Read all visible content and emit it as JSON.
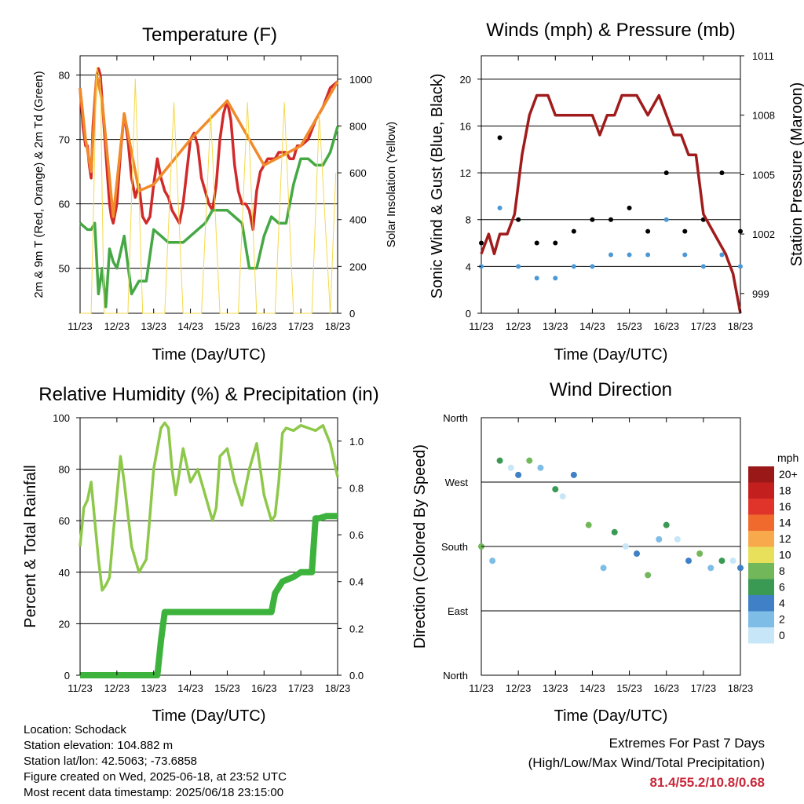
{
  "chart_data": [
    {
      "type": "line",
      "title": "Temperature (F)",
      "xlabel": "Time (Day/UTC)",
      "ylabel": "2m & 9m T (Red, Orange) & 2m Td (Green)",
      "ylabel_right": "Solar Insolation (Yellow)",
      "x_ticks": [
        "11/23",
        "12/23",
        "13/23",
        "14/23",
        "15/23",
        "16/23",
        "17/23",
        "18/23"
      ],
      "ylim": [
        43,
        83
      ],
      "y_ticks": [
        50,
        60,
        70,
        80
      ],
      "ylim_right": [
        0,
        1100
      ],
      "y_ticks_right": [
        0,
        200,
        400,
        600,
        800,
        1000
      ],
      "grid": true,
      "series": [
        {
          "name": "2m T",
          "color": "#d12a2a",
          "axis": "left",
          "x": [
            0,
            0.08,
            0.15,
            0.2,
            0.25,
            0.3,
            0.35,
            0.4,
            0.45,
            0.5,
            0.55,
            0.6,
            0.65,
            0.7,
            0.75,
            0.8,
            0.85,
            0.9,
            1.0,
            1.1,
            1.2,
            1.3,
            1.4,
            1.5,
            1.6,
            1.7,
            1.8,
            1.9,
            2.0,
            2.1,
            2.2,
            2.3,
            2.4,
            2.5,
            2.6,
            2.7,
            2.8,
            2.9,
            3.0,
            3.1,
            3.2,
            3.3,
            3.4,
            3.5,
            3.6,
            3.7,
            3.8,
            3.9,
            4.0,
            4.1,
            4.2,
            4.3,
            4.4,
            4.5,
            4.6,
            4.7,
            4.8,
            4.9,
            5.0,
            5.1,
            5.2,
            5.3,
            5.4,
            5.5,
            5.6,
            5.7,
            5.8,
            5.9,
            6.0,
            6.2,
            6.4,
            6.6,
            6.8,
            7.0
          ],
          "y": [
            78,
            72,
            69,
            69,
            66,
            64,
            72,
            76,
            80,
            81,
            80,
            76,
            72,
            68,
            64,
            60,
            58,
            57,
            60,
            68,
            74,
            70,
            64,
            61,
            63,
            58,
            57,
            58,
            63,
            67,
            64,
            62,
            61,
            59,
            58,
            57,
            60,
            65,
            70,
            71,
            69,
            64,
            62,
            60,
            59,
            63,
            70,
            74,
            76,
            73,
            66,
            62,
            60,
            60,
            59,
            56,
            62,
            65,
            66,
            67,
            67,
            67,
            68,
            68,
            68,
            67,
            67,
            69,
            69,
            70,
            73,
            75,
            78,
            79
          ]
        },
        {
          "name": "9m T",
          "color": "#f08a2a",
          "axis": "left",
          "x": [
            0,
            0.15,
            0.3,
            0.45,
            0.6,
            0.9,
            1.2,
            1.6,
            2.0,
            3.0,
            4.0,
            5.0,
            6.0,
            7.0
          ],
          "y": [
            78,
            70,
            65,
            80,
            76,
            58,
            74,
            62,
            63,
            70,
            76,
            66,
            69,
            79
          ]
        },
        {
          "name": "2m Td",
          "color": "#45a845",
          "axis": "left",
          "x": [
            0,
            0.2,
            0.3,
            0.4,
            0.5,
            0.6,
            0.7,
            0.8,
            0.9,
            1.0,
            1.2,
            1.4,
            1.6,
            1.8,
            2.0,
            2.2,
            2.4,
            2.6,
            2.8,
            3.0,
            3.2,
            3.4,
            3.6,
            3.8,
            4.0,
            4.2,
            4.4,
            4.6,
            4.8,
            5.0,
            5.2,
            5.4,
            5.6,
            5.8,
            6.0,
            6.2,
            6.4,
            6.6,
            6.8,
            7.0
          ],
          "y": [
            57,
            56,
            56,
            57,
            46,
            50,
            44,
            53,
            51,
            50,
            55,
            46,
            48,
            48,
            56,
            55,
            54,
            54,
            54,
            55,
            56,
            57,
            59,
            59,
            59,
            58,
            57,
            50,
            50,
            55,
            58,
            57,
            57,
            63,
            67,
            67,
            66,
            66,
            68,
            72
          ]
        },
        {
          "name": "Solar Insolation",
          "color": "#f5d94a",
          "axis": "right",
          "x": [
            0,
            0.3,
            0.45,
            0.55,
            0.65,
            0.8,
            1.3,
            1.5,
            1.7,
            2.3,
            2.55,
            2.8,
            3.3,
            3.55,
            3.8,
            4.3,
            4.55,
            4.8,
            5.3,
            5.55,
            5.8,
            6.3,
            6.5,
            6.8,
            6.95
          ],
          "y": [
            0,
            0,
            1050,
            1000,
            0,
            0,
            0,
            1000,
            0,
            0,
            900,
            0,
            0,
            850,
            0,
            0,
            900,
            0,
            0,
            900,
            0,
            0,
            850,
            0,
            600
          ]
        }
      ]
    },
    {
      "type": "scatter",
      "title": "Winds (mph) & Pressure (mb)",
      "xlabel": "Time (Day/UTC)",
      "ylabel": "Sonic Wind & Gust (Blue, Black)",
      "ylabel_right": "Station Pressure (Maroon)",
      "x_ticks": [
        "11/23",
        "12/23",
        "13/23",
        "14/23",
        "15/23",
        "16/23",
        "17/23",
        "18/23"
      ],
      "ylim": [
        0,
        22
      ],
      "y_ticks": [
        0,
        4,
        8,
        12,
        16,
        20
      ],
      "ylim_right": [
        998,
        1011
      ],
      "y_ticks_right": [
        999,
        1002,
        1005,
        1008,
        1011
      ],
      "grid": true,
      "series": [
        {
          "name": "Sonic Wind",
          "color": "#4a98d6",
          "x": [
            0,
            0.5,
            1.0,
            1.5,
            2.0,
            2.5,
            3.0,
            3.5,
            4.0,
            4.5,
            5.0,
            5.5,
            6.0,
            6.5,
            7.0
          ],
          "y": [
            4,
            9,
            4,
            3,
            3,
            4,
            4,
            5,
            5,
            5,
            8,
            5,
            4,
            5,
            4
          ]
        },
        {
          "name": "Gust",
          "color": "#000000",
          "x": [
            0,
            0.5,
            1.0,
            1.5,
            2.0,
            2.5,
            3.0,
            3.5,
            4.0,
            4.5,
            5.0,
            5.5,
            6.0,
            6.5,
            7.0
          ],
          "y": [
            6,
            15,
            8,
            6,
            6,
            7,
            8,
            8,
            9,
            7,
            12,
            7,
            8,
            12,
            7
          ]
        },
        {
          "name": "Station Pressure",
          "color": "#a01c1c",
          "axis": "right",
          "x": [
            0,
            0.2,
            0.35,
            0.5,
            0.7,
            0.9,
            1.1,
            1.3,
            1.5,
            1.8,
            2.0,
            2.3,
            2.5,
            2.8,
            3.0,
            3.2,
            3.4,
            3.6,
            3.8,
            4.0,
            4.2,
            4.5,
            4.8,
            5.0,
            5.2,
            5.4,
            5.6,
            5.8,
            6.0,
            6.3,
            6.6,
            6.8,
            7.0
          ],
          "y": [
            1001,
            1002,
            1001,
            1002,
            1002,
            1003,
            1006,
            1008,
            1009,
            1009,
            1008,
            1008,
            1008,
            1008,
            1008,
            1007,
            1008,
            1008,
            1009,
            1009,
            1009,
            1008,
            1009,
            1008,
            1007,
            1007,
            1006,
            1006,
            1003,
            1002,
            1001,
            1000,
            998
          ]
        }
      ]
    },
    {
      "type": "line",
      "title": "Relative Humidity (%) & Precipitation (in)",
      "xlabel": "Time (Day/UTC)",
      "ylabel": "Percent & Total Rainfall",
      "x_ticks": [
        "11/23",
        "12/23",
        "13/23",
        "14/23",
        "15/23",
        "16/23",
        "17/23",
        "18/23"
      ],
      "ylim": [
        0,
        100
      ],
      "y_ticks": [
        0,
        20,
        40,
        60,
        80,
        100
      ],
      "ylim_right": [
        0,
        1.1
      ],
      "y_ticks_right": [
        "0.0",
        "0.2",
        "0.4",
        "0.6",
        "0.8",
        "1.0"
      ],
      "grid": true,
      "series": [
        {
          "name": "Relative Humidity",
          "color": "#8ec84a",
          "axis": "left",
          "x": [
            0,
            0.1,
            0.2,
            0.3,
            0.4,
            0.5,
            0.6,
            0.7,
            0.8,
            0.9,
            1.0,
            1.1,
            1.2,
            1.4,
            1.6,
            1.8,
            1.9,
            2.0,
            2.1,
            2.2,
            2.3,
            2.4,
            2.5,
            2.6,
            2.8,
            3.0,
            3.2,
            3.4,
            3.6,
            3.7,
            3.8,
            4.0,
            4.2,
            4.4,
            4.6,
            4.8,
            5.0,
            5.2,
            5.3,
            5.4,
            5.5,
            5.6,
            5.8,
            6.0,
            6.2,
            6.4,
            6.6,
            6.8,
            7.0
          ],
          "y": [
            50,
            65,
            68,
            75,
            60,
            45,
            33,
            35,
            38,
            55,
            70,
            85,
            75,
            50,
            40,
            45,
            62,
            80,
            88,
            96,
            98,
            96,
            80,
            70,
            88,
            75,
            80,
            70,
            60,
            65,
            85,
            88,
            75,
            66,
            80,
            90,
            70,
            60,
            62,
            75,
            94,
            96,
            95,
            97,
            96,
            95,
            97,
            90,
            77
          ]
        },
        {
          "name": "Total Rainfall",
          "color": "#3db33d",
          "axis": "right",
          "x": [
            0,
            1.0,
            2.0,
            2.1,
            2.2,
            2.3,
            2.5,
            3.0,
            4.0,
            5.0,
            5.2,
            5.3,
            5.5,
            5.8,
            6.0,
            6.3,
            6.4,
            6.5,
            6.7,
            7.0
          ],
          "y": [
            0,
            0,
            0,
            0,
            0.15,
            0.27,
            0.27,
            0.27,
            0.27,
            0.27,
            0.27,
            0.35,
            0.4,
            0.42,
            0.44,
            0.44,
            0.67,
            0.67,
            0.68,
            0.68
          ]
        }
      ]
    },
    {
      "type": "scatter",
      "title": "Wind Direction",
      "xlabel": "Time (Day/UTC)",
      "ylabel": "Direction (Colored By Speed)",
      "x_ticks": [
        "11/23",
        "12/23",
        "13/23",
        "14/23",
        "15/23",
        "16/23",
        "17/23",
        "18/23"
      ],
      "y_ticks": [
        "North",
        "West",
        "South",
        "East",
        "North"
      ],
      "ylim": [
        0,
        360
      ],
      "grid": true,
      "legend": {
        "title": "mph",
        "placement": "right",
        "labels": [
          "20+",
          "18",
          "16",
          "14",
          "12",
          "10",
          "8",
          "6",
          "4",
          "2",
          "0"
        ],
        "colors": [
          "#9a1818",
          "#c41f1f",
          "#e0342a",
          "#ef6a2c",
          "#f7a94b",
          "#e8e05a",
          "#72b85a",
          "#3a9a54",
          "#3f80c6",
          "#7ebde6",
          "#c7e6f7"
        ]
      },
      "series": [
        {
          "name": "Direction",
          "x": [
            0,
            0.3,
            0.5,
            0.8,
            1.0,
            1.3,
            1.6,
            2.0,
            2.2,
            2.5,
            2.9,
            3.3,
            3.6,
            3.9,
            4.2,
            4.5,
            4.8,
            5.0,
            5.3,
            5.6,
            5.9,
            6.2,
            6.5,
            6.8,
            7.0
          ],
          "y": [
            180,
            160,
            300,
            290,
            280,
            300,
            290,
            260,
            250,
            280,
            210,
            150,
            200,
            180,
            170,
            140,
            190,
            210,
            190,
            160,
            170,
            150,
            160,
            160,
            150
          ]
        }
      ]
    }
  ],
  "info": {
    "location": "Location: Schodack",
    "elevation": "Station elevation: 104.882 m",
    "latlon": "Station lat/lon: 42.5063; -73.6858",
    "created": "Figure created on Wed, 2025-06-18, at 23:52 UTC",
    "recent": "Most recent data timestamp: 2025/06/18 23:15:00"
  },
  "extremes": {
    "title": "Extremes For Past 7 Days",
    "subtitle": "(High/Low/Max Wind/Total Precipitation)",
    "values": "81.4/55.2/10.8/0.68"
  }
}
